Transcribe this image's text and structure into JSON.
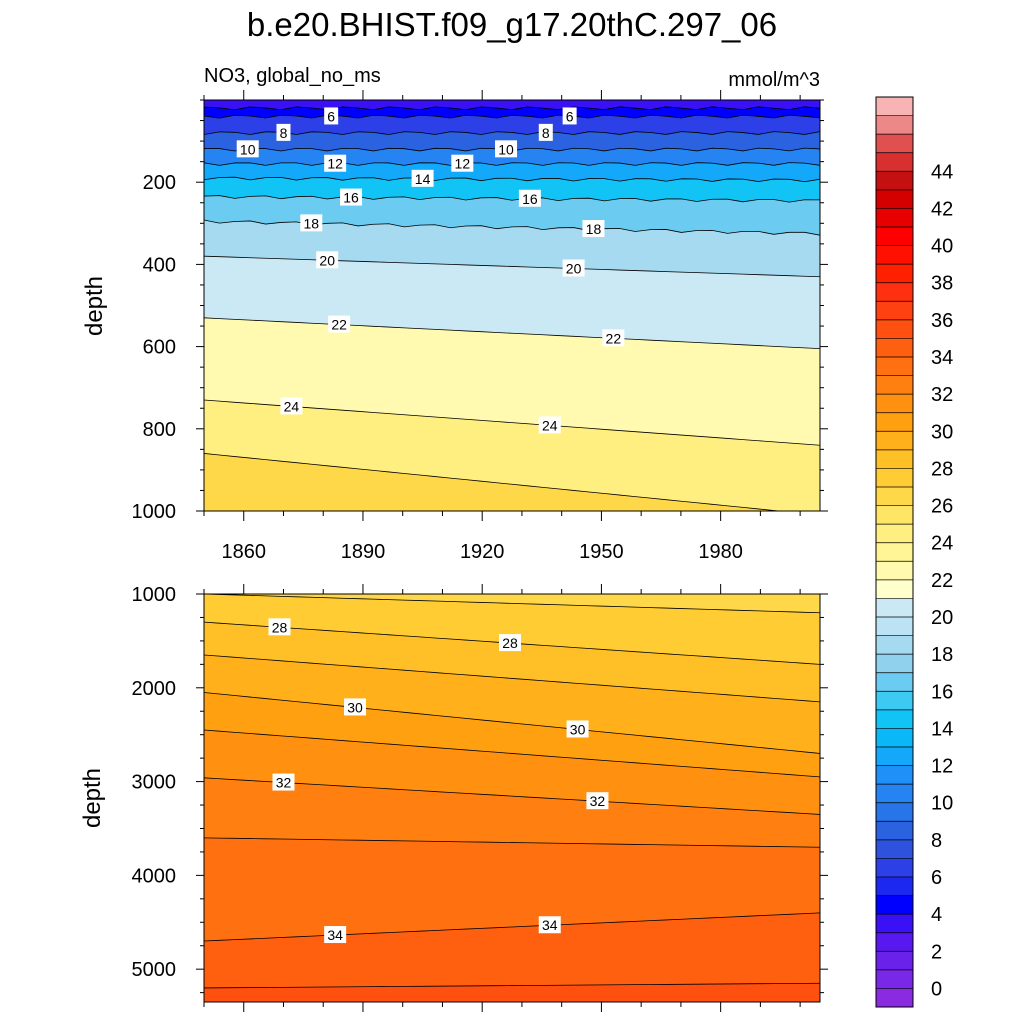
{
  "chart_data": {
    "type": "contour",
    "title": "b.e20.BHIST.f09_g17.20thC.297_06",
    "variable_label": "NO3, global_no_ms",
    "units": "mmol/m^3",
    "xlabel": "",
    "ylabel": "depth",
    "x_ticks": [
      1860,
      1890,
      1920,
      1950,
      1980
    ],
    "xlim": [
      1850,
      2005
    ],
    "panels": [
      {
        "name": "upper",
        "ylim": [
          0,
          1000
        ],
        "y_ticks": [
          200,
          400,
          600,
          800,
          1000
        ],
        "contours": [
          {
            "level": 4,
            "depth_start": 20,
            "depth_end": 20,
            "labels": []
          },
          {
            "level": 6,
            "depth_start": 40,
            "depth_end": 40,
            "labels": [
              {
                "text": "6",
                "x": 1882
              },
              {
                "text": "6",
                "x": 1942
              }
            ]
          },
          {
            "level": 8,
            "depth_start": 80,
            "depth_end": 80,
            "labels": [
              {
                "text": "8",
                "x": 1870
              },
              {
                "text": "8",
                "x": 1936
              }
            ]
          },
          {
            "level": 10,
            "depth_start": 120,
            "depth_end": 120,
            "labels": [
              {
                "text": "10",
                "x": 1861
              },
              {
                "text": "10",
                "x": 1926
              }
            ]
          },
          {
            "level": 12,
            "depth_start": 155,
            "depth_end": 155,
            "labels": [
              {
                "text": "12",
                "x": 1883
              },
              {
                "text": "12",
                "x": 1915
              }
            ]
          },
          {
            "level": 14,
            "depth_start": 190,
            "depth_end": 195,
            "labels": [
              {
                "text": "14",
                "x": 1905
              }
            ]
          },
          {
            "level": 16,
            "depth_start": 235,
            "depth_end": 245,
            "labels": [
              {
                "text": "16",
                "x": 1887
              },
              {
                "text": "16",
                "x": 1932
              }
            ]
          },
          {
            "level": 18,
            "depth_start": 295,
            "depth_end": 325,
            "labels": [
              {
                "text": "18",
                "x": 1877
              },
              {
                "text": "18",
                "x": 1948
              }
            ]
          },
          {
            "level": 20,
            "depth_start": 380,
            "depth_end": 430,
            "labels": [
              {
                "text": "20",
                "x": 1881
              },
              {
                "text": "20",
                "x": 1943
              }
            ]
          },
          {
            "level": 22,
            "depth_start": 530,
            "depth_end": 605,
            "labels": [
              {
                "text": "22",
                "x": 1884
              },
              {
                "text": "22",
                "x": 1953
              }
            ]
          },
          {
            "level": 24,
            "depth_start": 730,
            "depth_end": 840,
            "labels": [
              {
                "text": "24",
                "x": 1872
              },
              {
                "text": "24",
                "x": 1937
              }
            ]
          },
          {
            "level": 26,
            "depth_start": 860,
            "depth_end": 1010,
            "labels": []
          }
        ]
      },
      {
        "name": "lower",
        "ylim": [
          1000,
          5350
        ],
        "y_ticks": [
          1000,
          2000,
          3000,
          4000,
          5000
        ],
        "contours": [
          {
            "level": 27,
            "depth_start": 1000,
            "depth_end": 1200,
            "labels": []
          },
          {
            "level": 28,
            "depth_start": 1300,
            "depth_end": 1750,
            "labels": [
              {
                "text": "28",
                "x": 1869
              },
              {
                "text": "28",
                "x": 1927
              }
            ]
          },
          {
            "level": 29,
            "depth_start": 1650,
            "depth_end": 2150,
            "labels": []
          },
          {
            "level": 30,
            "depth_start": 2050,
            "depth_end": 2700,
            "labels": [
              {
                "text": "30",
                "x": 1888
              },
              {
                "text": "30",
                "x": 1944
              }
            ]
          },
          {
            "level": 31,
            "depth_start": 2450,
            "depth_end": 2950,
            "labels": []
          },
          {
            "level": 32,
            "depth_start": 2960,
            "depth_end": 3350,
            "labels": [
              {
                "text": "32",
                "x": 1870
              },
              {
                "text": "32",
                "x": 1949
              }
            ]
          },
          {
            "level": 33,
            "depth_start": 3600,
            "depth_end": 3700,
            "labels": []
          },
          {
            "level": 34,
            "depth_start": 4700,
            "depth_end": 4400,
            "labels": [
              {
                "text": "34",
                "x": 1883
              },
              {
                "text": "34",
                "x": 1937
              }
            ]
          },
          {
            "level": 35,
            "depth_start": 5200,
            "depth_end": 5150,
            "labels": []
          }
        ]
      }
    ],
    "colorbar": {
      "tick_labels": [
        "0",
        "2",
        "4",
        "6",
        "8",
        "10",
        "12",
        "14",
        "16",
        "18",
        "20",
        "22",
        "24",
        "26",
        "28",
        "30",
        "32",
        "34",
        "36",
        "38",
        "40",
        "42",
        "44"
      ],
      "levels_start": -1,
      "level_step": 1,
      "colors": [
        "#8a2be2",
        "#7a28e8",
        "#6a22ea",
        "#5a18f0",
        "#3a10f6",
        "#0000ff",
        "#1c28f0",
        "#2d40e8",
        "#2e52de",
        "#2a62e0",
        "#2775e8",
        "#2584f2",
        "#1f90f8",
        "#14a8fa",
        "#0ab8f8",
        "#12c4f6",
        "#3ccaf2",
        "#6ccbf0",
        "#90d1ee",
        "#a6daf0",
        "#bbe3f3",
        "#cbe9f4",
        "#ffffcc",
        "#fffab0",
        "#fff596",
        "#ffee80",
        "#ffe566",
        "#ffd84a",
        "#ffcc33",
        "#ffbf26",
        "#ffb01a",
        "#ffa010",
        "#ff9010",
        "#ff8010",
        "#ff7010",
        "#ff6010",
        "#ff5010",
        "#ff4010",
        "#ff3010",
        "#ff2000",
        "#ff1000",
        "#ff0000",
        "#e80000",
        "#d40000",
        "#c41010",
        "#d83030",
        "#e05050",
        "#ec8888",
        "#f8b4b4"
      ]
    }
  }
}
